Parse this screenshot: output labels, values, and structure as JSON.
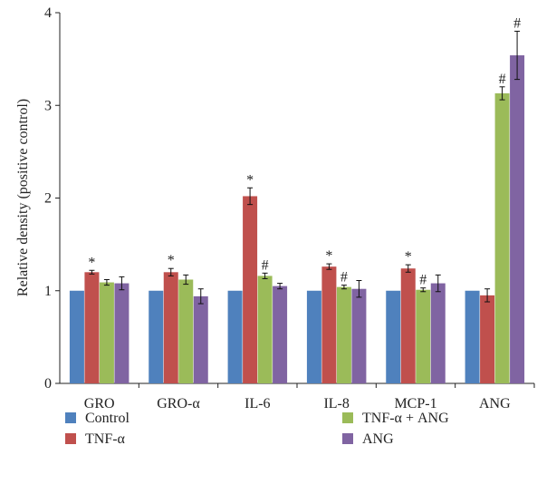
{
  "chart_data": {
    "type": "bar",
    "title": "",
    "xlabel": "",
    "ylabel": "Relative density (positive control)",
    "ylim": [
      0,
      4
    ],
    "yticks": [
      0,
      1,
      2,
      3,
      4
    ],
    "grid": false,
    "legend_position": "bottom",
    "categories": [
      "GRO",
      "GRO-α",
      "IL-6",
      "IL-8",
      "MCP-1",
      "ANG"
    ],
    "series": [
      {
        "name": "Control",
        "color": "#4f81bd",
        "values": [
          1.0,
          1.0,
          1.0,
          1.0,
          1.0,
          1.0
        ],
        "errors": [
          0,
          0,
          0,
          0,
          0,
          0
        ],
        "markers": [
          "",
          "",
          "",
          "",
          "",
          ""
        ]
      },
      {
        "name": "TNF-α",
        "color": "#c0504d",
        "values": [
          1.2,
          1.2,
          2.02,
          1.26,
          1.24,
          0.95
        ],
        "errors": [
          0.02,
          0.04,
          0.09,
          0.03,
          0.04,
          0.07
        ],
        "markers": [
          "*",
          "*",
          "*",
          "*",
          "*",
          ""
        ]
      },
      {
        "name": "TNF-α + ANG",
        "color": "#9bbb59",
        "values": [
          1.09,
          1.12,
          1.16,
          1.04,
          1.01,
          3.13
        ],
        "errors": [
          0.03,
          0.05,
          0.03,
          0.02,
          0.02,
          0.07
        ],
        "markers": [
          "",
          "",
          "#",
          "#",
          "#",
          "#"
        ]
      },
      {
        "name": "ANG",
        "color": "#8064a2",
        "values": [
          1.08,
          0.94,
          1.05,
          1.02,
          1.08,
          3.54
        ],
        "errors": [
          0.07,
          0.08,
          0.03,
          0.09,
          0.09,
          0.26
        ],
        "markers": [
          "",
          "",
          "",
          "",
          "",
          "#"
        ]
      }
    ]
  }
}
